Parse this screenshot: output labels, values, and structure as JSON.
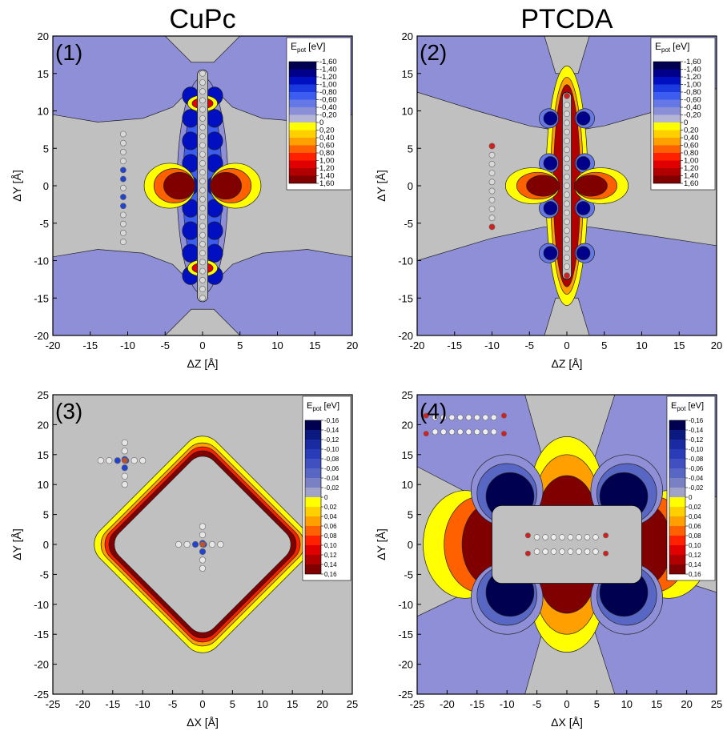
{
  "chart_data": [
    {
      "type": "contour",
      "title": "CuPc",
      "panel_label": "(1)",
      "x_label": "ΔZ [Å]",
      "y_label": "ΔY [Å]",
      "xlim": [
        -20,
        20
      ],
      "ylim": [
        -20,
        20
      ],
      "xticks": [
        -20,
        -15,
        -10,
        -5,
        0,
        5,
        10,
        15,
        20
      ],
      "yticks": [
        -20,
        -15,
        -10,
        -5,
        0,
        5,
        10,
        15,
        20
      ],
      "colorbar": {
        "title": {
          "main": "E",
          "sub": "pot",
          "unit": "[eV]"
        },
        "ticks": [
          {
            "value": -1.6,
            "label": "-1,60"
          },
          {
            "value": -1.4,
            "label": "-1,40"
          },
          {
            "value": -1.2,
            "label": "-1,20"
          },
          {
            "value": -1.0,
            "label": "-1,00"
          },
          {
            "value": -0.8,
            "label": "-0,80"
          },
          {
            "value": -0.6,
            "label": "-0,60"
          },
          {
            "value": -0.4,
            "label": "-0,40"
          },
          {
            "value": -0.2,
            "label": "-0,20"
          },
          0,
          {
            "value": 0.2,
            "label": "0,20"
          },
          {
            "value": 0.4,
            "label": "0,40"
          },
          {
            "value": 0.6,
            "label": "0,60"
          },
          {
            "value": 0.8,
            "label": "0,80"
          },
          {
            "value": 1.0,
            "label": "1,00"
          },
          {
            "value": 1.2,
            "label": "1,20"
          },
          {
            "value": 1.4,
            "label": "1,40"
          },
          {
            "value": 1.6,
            "label": "1,60"
          }
        ],
        "colors": [
          "#000050",
          "#00008a",
          "#0010c0",
          "#1a3ae0",
          "#3d5cf0",
          "#6677e6",
          "#8a8fd8",
          "#b4b4d4",
          "#ffff00",
          "#ffd000",
          "#ffa000",
          "#ff6000",
          "#ff2000",
          "#e00000",
          "#b00000",
          "#800000"
        ]
      }
    },
    {
      "type": "contour",
      "title": "PTCDA",
      "panel_label": "(2)",
      "x_label": "ΔZ [Å]",
      "y_label": "ΔY [Å]",
      "xlim": [
        -20,
        20
      ],
      "ylim": [
        -20,
        20
      ],
      "xticks": [
        -20,
        -15,
        -10,
        -5,
        0,
        5,
        10,
        15,
        20
      ],
      "yticks": [
        -20,
        -15,
        -10,
        -5,
        0,
        5,
        10,
        15,
        20
      ],
      "colorbar": {
        "title": {
          "main": "E",
          "sub": "pot",
          "unit": "[eV]"
        },
        "ticks": [
          {
            "value": -1.6,
            "label": "-1,60"
          },
          {
            "value": -1.4,
            "label": "-1,40"
          },
          {
            "value": -1.2,
            "label": "-1,20"
          },
          {
            "value": -1.0,
            "label": "-1,00"
          },
          {
            "value": -0.8,
            "label": "-0,80"
          },
          {
            "value": -0.6,
            "label": "-0,60"
          },
          {
            "value": -0.4,
            "label": "-0,40"
          },
          {
            "value": -0.2,
            "label": "-0,20"
          },
          0,
          {
            "value": 0.2,
            "label": "0,20"
          },
          {
            "value": 0.4,
            "label": "0,40"
          },
          {
            "value": 0.6,
            "label": "0,60"
          },
          {
            "value": 0.8,
            "label": "0,80"
          },
          {
            "value": 1.0,
            "label": "1,00"
          },
          {
            "value": 1.2,
            "label": "1,20"
          },
          {
            "value": 1.4,
            "label": "1,40"
          },
          {
            "value": 1.6,
            "label": "1,60"
          }
        ],
        "colors": [
          "#000050",
          "#00008a",
          "#0010c0",
          "#1a3ae0",
          "#3d5cf0",
          "#6677e6",
          "#8a8fd8",
          "#b4b4d4",
          "#ffff00",
          "#ffd000",
          "#ffa000",
          "#ff6000",
          "#ff2000",
          "#e00000",
          "#b00000",
          "#800000"
        ]
      }
    },
    {
      "type": "contour",
      "panel_label": "(3)",
      "x_label": "ΔX [Å]",
      "y_label": "ΔY [Å]",
      "xlim": [
        -25,
        25
      ],
      "ylim": [
        -25,
        25
      ],
      "xticks": [
        -25,
        -20,
        -15,
        -10,
        -5,
        0,
        5,
        10,
        15,
        20,
        25
      ],
      "yticks": [
        -25,
        -20,
        -15,
        -10,
        -5,
        0,
        5,
        10,
        15,
        20,
        25
      ],
      "colorbar": {
        "title": {
          "main": "E",
          "sub": "pot",
          "unit": "[eV]"
        },
        "ticks": [
          {
            "value": -0.16,
            "label": "-0,16"
          },
          {
            "value": -0.14,
            "label": "-0,14"
          },
          {
            "value": -0.12,
            "label": "-0,12"
          },
          {
            "value": -0.1,
            "label": "-0,10"
          },
          {
            "value": -0.08,
            "label": "-0,08"
          },
          {
            "value": -0.06,
            "label": "-0,06"
          },
          {
            "value": -0.04,
            "label": "-0,04"
          },
          {
            "value": -0.02,
            "label": "-0,02"
          },
          0,
          {
            "value": 0.02,
            "label": "0,02"
          },
          {
            "value": 0.04,
            "label": "0,04"
          },
          {
            "value": 0.06,
            "label": "0,06"
          },
          {
            "value": 0.08,
            "label": "0,08"
          },
          {
            "value": 0.1,
            "label": "0,10"
          },
          {
            "value": 0.12,
            "label": "0,12"
          },
          {
            "value": 0.14,
            "label": "0,14"
          },
          {
            "value": 0.16,
            "label": "0,16"
          }
        ],
        "colors": [
          "#000050",
          "#0a1a80",
          "#1a2aa0",
          "#2a3cb8",
          "#4050c0",
          "#5866c4",
          "#7a80c4",
          "#a0a2c8",
          "#ffff00",
          "#ffd000",
          "#ffa000",
          "#ff6000",
          "#ff2000",
          "#e00000",
          "#b00000",
          "#800000"
        ]
      }
    },
    {
      "type": "contour",
      "panel_label": "(4)",
      "x_label": "ΔX [Å]",
      "y_label": "ΔY [Å]",
      "xlim": [
        -25,
        25
      ],
      "ylim": [
        -25,
        25
      ],
      "xticks": [
        -25,
        -20,
        -15,
        -10,
        -5,
        0,
        5,
        10,
        15,
        20,
        25
      ],
      "yticks": [
        -25,
        -20,
        -15,
        -10,
        -5,
        0,
        5,
        10,
        15,
        20,
        25
      ],
      "colorbar": {
        "title": {
          "main": "E",
          "sub": "pot",
          "unit": "[eV]"
        },
        "ticks": [
          {
            "value": -0.16,
            "label": "-0,16"
          },
          {
            "value": -0.14,
            "label": "-0,14"
          },
          {
            "value": -0.12,
            "label": "-0,12"
          },
          {
            "value": -0.1,
            "label": "-0,10"
          },
          {
            "value": -0.08,
            "label": "-0,08"
          },
          {
            "value": -0.06,
            "label": "-0,06"
          },
          {
            "value": -0.04,
            "label": "-0,04"
          },
          {
            "value": -0.02,
            "label": "-0,02"
          },
          0,
          {
            "value": 0.02,
            "label": "0,02"
          },
          {
            "value": 0.04,
            "label": "0,04"
          },
          {
            "value": 0.06,
            "label": "0,06"
          },
          {
            "value": 0.08,
            "label": "0,08"
          },
          {
            "value": 0.1,
            "label": "0,10"
          },
          {
            "value": 0.12,
            "label": "0,12"
          },
          {
            "value": 0.14,
            "label": "0,14"
          },
          {
            "value": 0.16,
            "label": "0,16"
          }
        ],
        "colors": [
          "#000050",
          "#0a1a80",
          "#1a2aa0",
          "#2a3cb8",
          "#4050c0",
          "#5866c4",
          "#7a80c4",
          "#a0a2c8",
          "#ffff00",
          "#ffd000",
          "#ffa000",
          "#ff6000",
          "#ff2000",
          "#e00000",
          "#b00000",
          "#800000"
        ]
      }
    }
  ]
}
